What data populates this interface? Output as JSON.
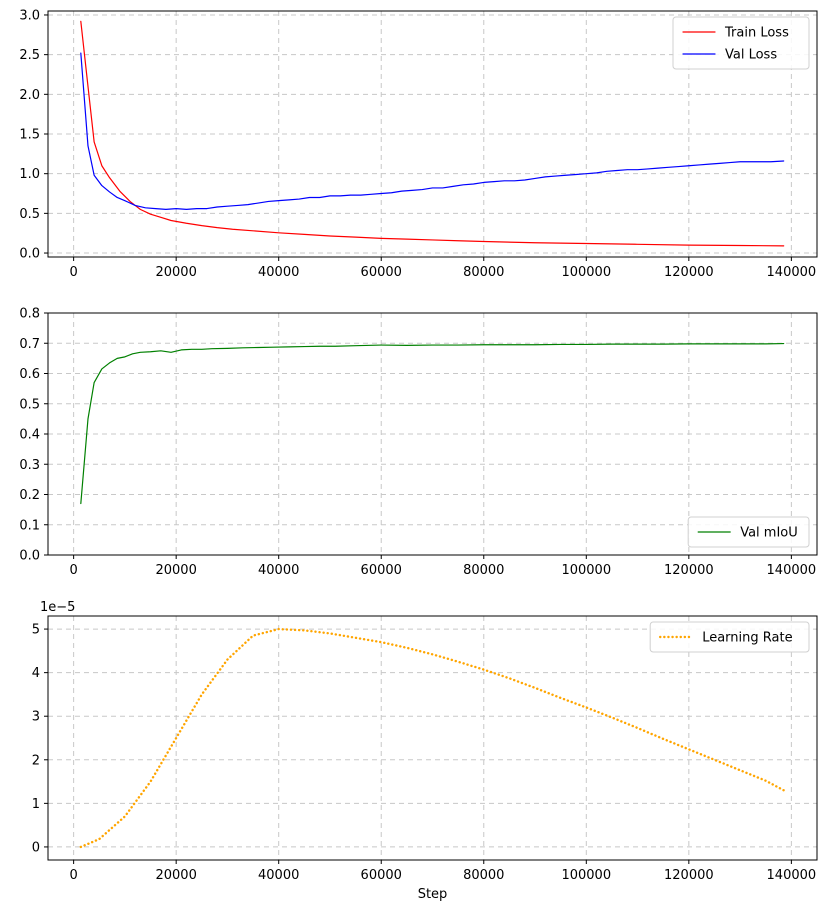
{
  "chart_data": [
    {
      "type": "line",
      "xlim": [
        -5000,
        145000
      ],
      "ylim": [
        -0.05,
        3.05
      ],
      "xticks": [
        0,
        20000,
        40000,
        60000,
        80000,
        100000,
        120000,
        140000
      ],
      "xtick_labels": [
        "0",
        "20000",
        "40000",
        "60000",
        "80000",
        "100000",
        "120000",
        "140000"
      ],
      "yticks": [
        0,
        0.5,
        1,
        1.5,
        2,
        2.5,
        3
      ],
      "ytick_labels": [
        "0.0",
        "0.5",
        "1.0",
        "1.5",
        "2.0",
        "2.5",
        "3.0"
      ],
      "grid": true,
      "legend_position": "top-right",
      "xlabel": "",
      "ylabel": "",
      "series": [
        {
          "name": "Train Loss",
          "color": "#ff0000",
          "style": "solid",
          "x": [
            1400,
            2800,
            4000,
            5500,
            7000,
            9000,
            11000,
            13000,
            15000,
            17000,
            19000,
            22000,
            25000,
            28000,
            31000,
            35000,
            40000,
            45000,
            50000,
            55000,
            60000,
            65000,
            70000,
            75000,
            80000,
            90000,
            100000,
            110000,
            120000,
            130000,
            138500
          ],
          "values": [
            2.92,
            2.1,
            1.4,
            1.1,
            0.95,
            0.78,
            0.65,
            0.55,
            0.49,
            0.45,
            0.41,
            0.375,
            0.345,
            0.32,
            0.3,
            0.28,
            0.255,
            0.235,
            0.215,
            0.2,
            0.185,
            0.175,
            0.165,
            0.155,
            0.145,
            0.13,
            0.12,
            0.11,
            0.1,
            0.095,
            0.09
          ]
        },
        {
          "name": "Val Loss",
          "color": "#0000ff",
          "style": "solid",
          "x": [
            1400,
            2800,
            4000,
            5500,
            7000,
            8500,
            10000,
            12000,
            14000,
            16000,
            18000,
            20000,
            22000,
            24000,
            26000,
            28000,
            30000,
            32000,
            34000,
            36000,
            38000,
            40000,
            42000,
            44000,
            46000,
            48000,
            50000,
            52000,
            54000,
            56000,
            58000,
            60000,
            62000,
            64000,
            66000,
            68000,
            70000,
            72000,
            74000,
            76000,
            78000,
            80000,
            82000,
            84000,
            86000,
            88000,
            90000,
            92000,
            94000,
            96000,
            98000,
            100000,
            102000,
            104000,
            106000,
            108000,
            110000,
            112000,
            114000,
            116000,
            118000,
            120000,
            122000,
            124000,
            126000,
            128000,
            130000,
            132000,
            134000,
            136000,
            138500
          ],
          "values": [
            2.52,
            1.35,
            0.98,
            0.85,
            0.77,
            0.7,
            0.66,
            0.6,
            0.57,
            0.56,
            0.55,
            0.56,
            0.55,
            0.56,
            0.56,
            0.58,
            0.59,
            0.6,
            0.61,
            0.63,
            0.65,
            0.66,
            0.67,
            0.68,
            0.7,
            0.7,
            0.72,
            0.72,
            0.73,
            0.73,
            0.74,
            0.75,
            0.76,
            0.78,
            0.79,
            0.8,
            0.82,
            0.82,
            0.84,
            0.86,
            0.87,
            0.89,
            0.9,
            0.91,
            0.91,
            0.92,
            0.94,
            0.96,
            0.97,
            0.98,
            0.99,
            1.0,
            1.01,
            1.03,
            1.04,
            1.05,
            1.05,
            1.06,
            1.07,
            1.08,
            1.09,
            1.1,
            1.11,
            1.12,
            1.13,
            1.14,
            1.15,
            1.15,
            1.15,
            1.15,
            1.16
          ]
        }
      ]
    },
    {
      "type": "line",
      "xlim": [
        -5000,
        145000
      ],
      "ylim": [
        0,
        0.8
      ],
      "xticks": [
        0,
        20000,
        40000,
        60000,
        80000,
        100000,
        120000,
        140000
      ],
      "xtick_labels": [
        "0",
        "20000",
        "40000",
        "60000",
        "80000",
        "100000",
        "120000",
        "140000"
      ],
      "yticks": [
        0,
        0.1,
        0.2,
        0.3,
        0.4,
        0.5,
        0.6,
        0.7,
        0.8
      ],
      "ytick_labels": [
        "0.0",
        "0.1",
        "0.2",
        "0.3",
        "0.4",
        "0.5",
        "0.6",
        "0.7",
        "0.8"
      ],
      "grid": true,
      "legend_position": "bottom-right",
      "xlabel": "",
      "ylabel": "",
      "series": [
        {
          "name": "Val mIoU",
          "color": "#008000",
          "style": "solid",
          "x": [
            1400,
            2800,
            4000,
            5500,
            7000,
            8500,
            10000,
            11500,
            13000,
            15000,
            17000,
            19000,
            21000,
            23000,
            25000,
            27000,
            30000,
            33000,
            36000,
            39000,
            42000,
            45000,
            48000,
            51000,
            55000,
            60000,
            65000,
            70000,
            75000,
            80000,
            85000,
            90000,
            95000,
            100000,
            105000,
            110000,
            115000,
            120000,
            125000,
            130000,
            135000,
            138500
          ],
          "values": [
            0.17,
            0.45,
            0.57,
            0.615,
            0.635,
            0.65,
            0.655,
            0.665,
            0.67,
            0.672,
            0.675,
            0.67,
            0.678,
            0.68,
            0.68,
            0.682,
            0.683,
            0.685,
            0.686,
            0.687,
            0.688,
            0.689,
            0.69,
            0.69,
            0.692,
            0.694,
            0.693,
            0.694,
            0.694,
            0.695,
            0.695,
            0.695,
            0.696,
            0.696,
            0.697,
            0.697,
            0.697,
            0.698,
            0.698,
            0.698,
            0.698,
            0.699
          ]
        }
      ]
    },
    {
      "type": "line",
      "xlim": [
        -5000,
        145000
      ],
      "ylim": [
        -3e-06,
        5.3e-05
      ],
      "xticks": [
        0,
        20000,
        40000,
        60000,
        80000,
        100000,
        120000,
        140000
      ],
      "xtick_labels": [
        "0",
        "20000",
        "40000",
        "60000",
        "80000",
        "100000",
        "120000",
        "140000"
      ],
      "yticks": [
        0,
        1e-05,
        2e-05,
        3e-05,
        4e-05,
        5e-05
      ],
      "ytick_labels": [
        "0",
        "1",
        "2",
        "3",
        "4",
        "5"
      ],
      "offset_text": "1e−5",
      "grid": true,
      "legend_position": "top-right",
      "xlabel": "Step",
      "ylabel": "",
      "series": [
        {
          "name": "Learning Rate",
          "color": "#ffa500",
          "style": "dotted",
          "x": [
            1400,
            5000,
            10000,
            15000,
            20000,
            25000,
            30000,
            35000,
            40000,
            45000,
            50000,
            55000,
            60000,
            65000,
            70000,
            75000,
            80000,
            85000,
            90000,
            95000,
            100000,
            105000,
            110000,
            115000,
            120000,
            125000,
            130000,
            135000,
            138500
          ],
          "values": [
            0.0,
            1.8e-06,
            7e-06,
            1.5e-05,
            2.5e-05,
            3.5e-05,
            4.3e-05,
            4.85e-05,
            5e-05,
            4.97e-05,
            4.9e-05,
            4.8e-05,
            4.7e-05,
            4.57e-05,
            4.42e-05,
            4.25e-05,
            4.07e-05,
            3.87e-05,
            3.65e-05,
            3.42e-05,
            3.2e-05,
            2.97e-05,
            2.73e-05,
            2.48e-05,
            2.24e-05,
            2e-05,
            1.76e-05,
            1.52e-05,
            1.3e-05
          ]
        }
      ]
    }
  ]
}
